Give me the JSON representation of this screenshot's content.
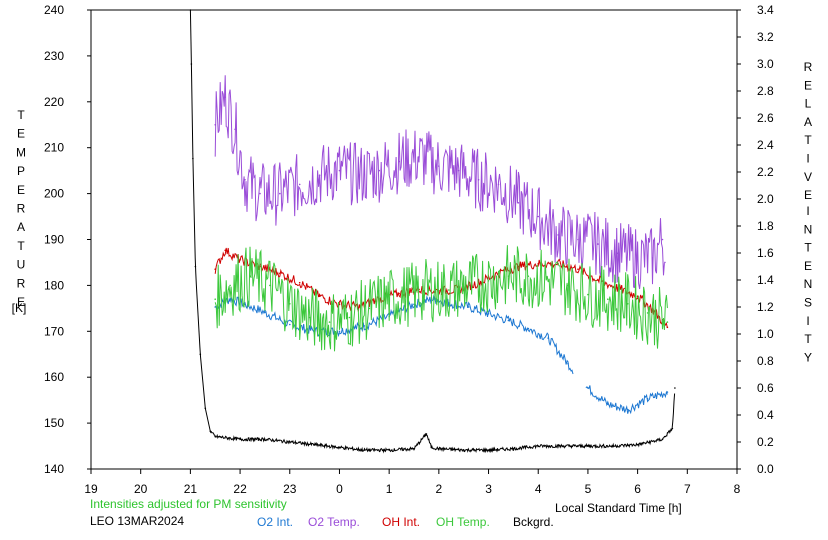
{
  "chart_data": {
    "type": "line",
    "title": "",
    "left_axis": {
      "label_letters": [
        "T",
        "E",
        "M",
        "P",
        "E",
        "R",
        "A",
        "T",
        "U",
        "R",
        "E"
      ],
      "unit": "[K]",
      "ylim": [
        140,
        240
      ],
      "ticks": [
        140,
        150,
        160,
        170,
        180,
        190,
        200,
        210,
        220,
        230,
        240
      ]
    },
    "right_axis": {
      "label_word1": [
        "R",
        "E",
        "L",
        "A",
        "T",
        "I",
        "V",
        "E"
      ],
      "label_word2": [
        "I",
        "N",
        "T",
        "E",
        "N",
        "S",
        "I",
        "T",
        "Y"
      ],
      "ylim": [
        0,
        3.4
      ],
      "ticks": [
        "0.0",
        "0.2",
        "0.4",
        "0.6",
        "0.8",
        "1.0",
        "1.2",
        "1.4",
        "1.6",
        "1.8",
        "2.0",
        "2.2",
        "2.4",
        "2.6",
        "2.8",
        "3.0",
        "3.2",
        "3.4"
      ]
    },
    "x_axis": {
      "label": "Local Standard Time [h]",
      "xlim": [
        19,
        32
      ],
      "tick_labels": [
        "19",
        "20",
        "21",
        "22",
        "23",
        "0",
        "1",
        "2",
        "3",
        "4",
        "5",
        "6",
        "7",
        "8"
      ]
    },
    "grid": false,
    "legend_position": "bottom",
    "series": [
      {
        "name": "O2 Int.",
        "axis": "right",
        "color": "#1e78d2",
        "points": [
          [
            21.5,
            1.2
          ],
          [
            21.8,
            1.26
          ],
          [
            22.1,
            1.22
          ],
          [
            22.5,
            1.16
          ],
          [
            23.0,
            1.07
          ],
          [
            23.5,
            1.02
          ],
          [
            24.0,
            1.02
          ],
          [
            24.5,
            1.06
          ],
          [
            25.0,
            1.13
          ],
          [
            25.5,
            1.22
          ],
          [
            25.9,
            1.26
          ],
          [
            26.2,
            1.23
          ],
          [
            26.6,
            1.2
          ],
          [
            27.0,
            1.15
          ],
          [
            27.4,
            1.1
          ],
          [
            27.8,
            1.04
          ],
          [
            28.2,
            0.97
          ],
          [
            28.6,
            0.78
          ],
          [
            29.0,
            0.6
          ],
          [
            29.4,
            0.48
          ],
          [
            29.8,
            0.44
          ],
          [
            30.2,
            0.52
          ],
          [
            30.6,
            0.57
          ]
        ],
        "gaps": [
          [
            28.7,
            28.95
          ]
        ]
      },
      {
        "name": "O2 Temp.",
        "axis": "left",
        "color": "#9a4dd8",
        "points": [
          [
            21.5,
            215
          ],
          [
            21.7,
            221
          ],
          [
            21.9,
            214
          ],
          [
            22.1,
            203
          ],
          [
            22.4,
            200
          ],
          [
            22.8,
            200
          ],
          [
            23.2,
            202
          ],
          [
            23.6,
            204
          ],
          [
            24.0,
            205
          ],
          [
            24.4,
            204
          ],
          [
            24.8,
            205
          ],
          [
            25.2,
            207
          ],
          [
            25.6,
            208
          ],
          [
            26.0,
            206
          ],
          [
            26.4,
            205
          ],
          [
            26.8,
            203
          ],
          [
            27.2,
            202
          ],
          [
            27.6,
            198
          ],
          [
            28.0,
            195
          ],
          [
            28.4,
            191
          ],
          [
            28.8,
            190
          ],
          [
            29.2,
            189
          ],
          [
            29.6,
            187
          ],
          [
            30.0,
            186
          ],
          [
            30.3,
            186
          ],
          [
            30.5,
            190
          ],
          [
            30.55,
            185
          ]
        ]
      },
      {
        "name": "OH Int.",
        "axis": "right",
        "color": "#d00000",
        "points": [
          [
            21.5,
            1.48
          ],
          [
            21.7,
            1.62
          ],
          [
            22.0,
            1.55
          ],
          [
            22.4,
            1.5
          ],
          [
            22.8,
            1.45
          ],
          [
            23.2,
            1.38
          ],
          [
            23.6,
            1.28
          ],
          [
            24.0,
            1.22
          ],
          [
            24.4,
            1.2
          ],
          [
            24.8,
            1.26
          ],
          [
            25.2,
            1.3
          ],
          [
            25.6,
            1.33
          ],
          [
            26.0,
            1.32
          ],
          [
            26.4,
            1.33
          ],
          [
            26.8,
            1.38
          ],
          [
            27.2,
            1.45
          ],
          [
            27.6,
            1.5
          ],
          [
            28.0,
            1.52
          ],
          [
            28.4,
            1.52
          ],
          [
            28.8,
            1.48
          ],
          [
            29.2,
            1.4
          ],
          [
            29.6,
            1.34
          ],
          [
            30.0,
            1.28
          ],
          [
            30.3,
            1.18
          ],
          [
            30.6,
            1.05
          ]
        ]
      },
      {
        "name": "OH Temp.",
        "axis": "left",
        "color": "#3cc83c",
        "points": [
          [
            21.5,
            177
          ],
          [
            21.8,
            180
          ],
          [
            22.2,
            182
          ],
          [
            22.6,
            180
          ],
          [
            23.0,
            176
          ],
          [
            23.4,
            173
          ],
          [
            23.8,
            172
          ],
          [
            24.2,
            173
          ],
          [
            24.6,
            175
          ],
          [
            25.0,
            177
          ],
          [
            25.4,
            178
          ],
          [
            25.8,
            179
          ],
          [
            26.2,
            179
          ],
          [
            26.6,
            180
          ],
          [
            27.0,
            181
          ],
          [
            27.4,
            182
          ],
          [
            27.8,
            182
          ],
          [
            28.2,
            181
          ],
          [
            28.6,
            180
          ],
          [
            29.0,
            178
          ],
          [
            29.4,
            177
          ],
          [
            29.8,
            176
          ],
          [
            30.2,
            174
          ],
          [
            30.6,
            172
          ]
        ]
      },
      {
        "name": "Bckgrd.",
        "axis": "right",
        "color": "#000000",
        "points": [
          [
            21.0,
            3.4
          ],
          [
            21.02,
            3.0
          ],
          [
            21.05,
            2.3
          ],
          [
            21.1,
            1.5
          ],
          [
            21.2,
            0.85
          ],
          [
            21.3,
            0.45
          ],
          [
            21.4,
            0.28
          ],
          [
            21.5,
            0.24
          ],
          [
            22.0,
            0.22
          ],
          [
            22.5,
            0.22
          ],
          [
            23.0,
            0.2
          ],
          [
            23.5,
            0.18
          ],
          [
            24.0,
            0.16
          ],
          [
            24.5,
            0.14
          ],
          [
            25.0,
            0.14
          ],
          [
            25.5,
            0.15
          ],
          [
            25.75,
            0.26
          ],
          [
            25.85,
            0.16
          ],
          [
            26.0,
            0.15
          ],
          [
            26.5,
            0.14
          ],
          [
            27.0,
            0.14
          ],
          [
            27.5,
            0.15
          ],
          [
            28.0,
            0.17
          ],
          [
            28.5,
            0.17
          ],
          [
            29.0,
            0.17
          ],
          [
            29.5,
            0.17
          ],
          [
            30.0,
            0.18
          ],
          [
            30.5,
            0.22
          ],
          [
            30.7,
            0.3
          ],
          [
            30.75,
            0.6
          ]
        ]
      }
    ]
  },
  "footer": {
    "adjust_note": "Intensities adjusted for PM sensitivity",
    "site_date": "LEO 13MAR2024"
  },
  "colors": {
    "adjust_note": "#2ec42e",
    "axis": "#000000"
  }
}
